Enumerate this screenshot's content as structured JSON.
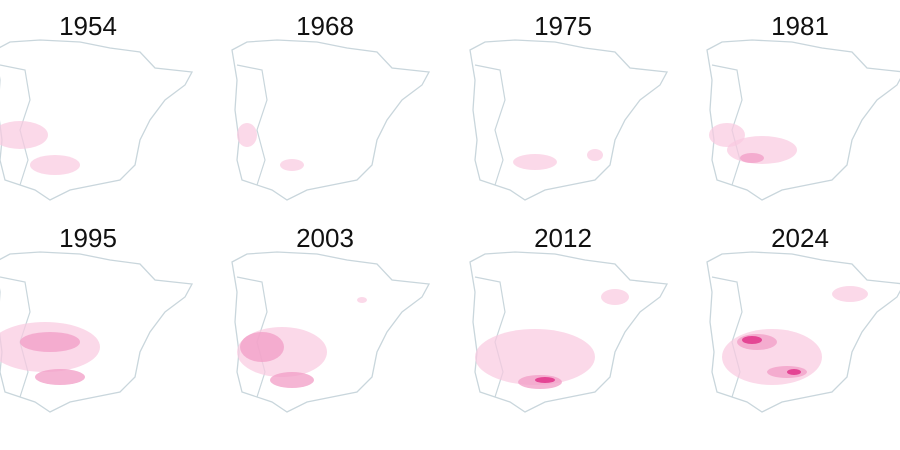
{
  "panels": [
    {
      "title": "1954"
    },
    {
      "title": "1968"
    },
    {
      "title": "1975"
    },
    {
      "title": "1981"
    },
    {
      "title": "1995"
    },
    {
      "title": "2003"
    },
    {
      "title": "2012"
    },
    {
      "title": "2024"
    }
  ]
}
